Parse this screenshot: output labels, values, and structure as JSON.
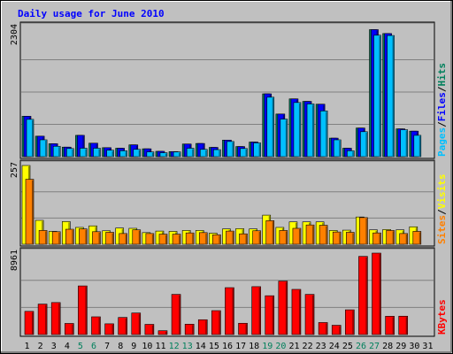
{
  "chart_data": {
    "type": "bar",
    "title": "Daily usage for June 2010",
    "categories": [
      "1",
      "2",
      "3",
      "4",
      "5",
      "6",
      "7",
      "8",
      "9",
      "10",
      "11",
      "12",
      "13",
      "14",
      "15",
      "16",
      "17",
      "18",
      "19",
      "20",
      "21",
      "22",
      "23",
      "24",
      "25",
      "26",
      "27",
      "28",
      "29",
      "30",
      "31"
    ],
    "weekend_days": [
      "5",
      "6",
      "12",
      "13",
      "19",
      "20",
      "26",
      "27"
    ],
    "panels": [
      {
        "name": "hits",
        "ymax": 2304,
        "ymax_label": "2304",
        "legend": [
          {
            "text": "Pages",
            "color": "#00c0ff"
          },
          {
            "text": "/",
            "color": "#000000"
          },
          {
            "text": "Files",
            "color": "#0000ff"
          },
          {
            "text": "/",
            "color": "#000000"
          },
          {
            "text": "Hits",
            "color": "#00805c"
          }
        ],
        "series": [
          {
            "name": "Hits",
            "color": "#00805c",
            "values": [
              720,
              365,
              230,
              170,
              380,
              240,
              160,
              150,
              210,
              140,
              95,
              90,
              225,
              235,
              165,
              295,
              180,
              260,
              1120,
              760,
              1030,
              985,
              935,
              330,
              150,
              510,
              2265,
              2195,
              495,
              455,
              0
            ]
          },
          {
            "name": "Files",
            "color": "#0000ff",
            "values": [
              720,
              365,
              230,
              170,
              380,
              240,
              160,
              150,
              210,
              140,
              95,
              90,
              225,
              235,
              165,
              295,
              180,
              260,
              1120,
              760,
              1030,
              985,
              935,
              330,
              150,
              510,
              2265,
              2195,
              495,
              455,
              0
            ]
          },
          {
            "name": "Pages",
            "color": "#00c0ff",
            "values": [
              665,
              300,
              185,
              145,
              150,
              150,
              115,
              105,
              130,
              85,
              70,
              85,
              150,
              130,
              125,
              270,
              145,
              245,
              1060,
              670,
              965,
              940,
              815,
              300,
              105,
              445,
              2165,
              2160,
              480,
              380,
              0
            ]
          }
        ]
      },
      {
        "name": "visits",
        "ymax": 257,
        "ymax_label": "257",
        "legend": [
          {
            "text": "Sites",
            "color": "#ff8000"
          },
          {
            "text": "/",
            "color": "#000000"
          },
          {
            "text": "Visits",
            "color": "#ffff00"
          }
        ],
        "series": [
          {
            "name": "Visits",
            "color": "#ffff00",
            "values": [
              257,
              78,
              42,
              74,
              55,
              60,
              44,
              53,
              52,
              38,
              43,
              42,
              45,
              45,
              36,
              50,
              51,
              50,
              95,
              55,
              73,
              73,
              73,
              45,
              46,
              89,
              47,
              48,
              47,
              57,
              0
            ]
          },
          {
            "name": "Sites",
            "color": "#ff8000",
            "values": [
              212,
              45,
              41,
              49,
              50,
              41,
              39,
              35,
              47,
              35,
              33,
              33,
              37,
              38,
              31,
              43,
              34,
              44,
              77,
              45,
              52,
              63,
              62,
              40,
              39,
              87,
              37,
              45,
              35,
              42,
              0
            ]
          }
        ]
      },
      {
        "name": "kbytes",
        "ymax": 8961,
        "ymax_label": "8961",
        "legend": [
          {
            "text": "KBytes",
            "color": "#ff0000"
          }
        ],
        "series": [
          {
            "name": "KBytes",
            "color": "#ff0000",
            "values": [
              2550,
              3350,
              3520,
              1220,
              5350,
              1950,
              1180,
              1880,
              2370,
              1120,
              420,
              4420,
              1140,
              1630,
              2630,
              5160,
              1240,
              5270,
              4270,
              5880,
              4970,
              4420,
              1320,
              1020,
              2720,
              8600,
              8961,
              2010,
              2020,
              0,
              0
            ]
          }
        ]
      }
    ]
  }
}
